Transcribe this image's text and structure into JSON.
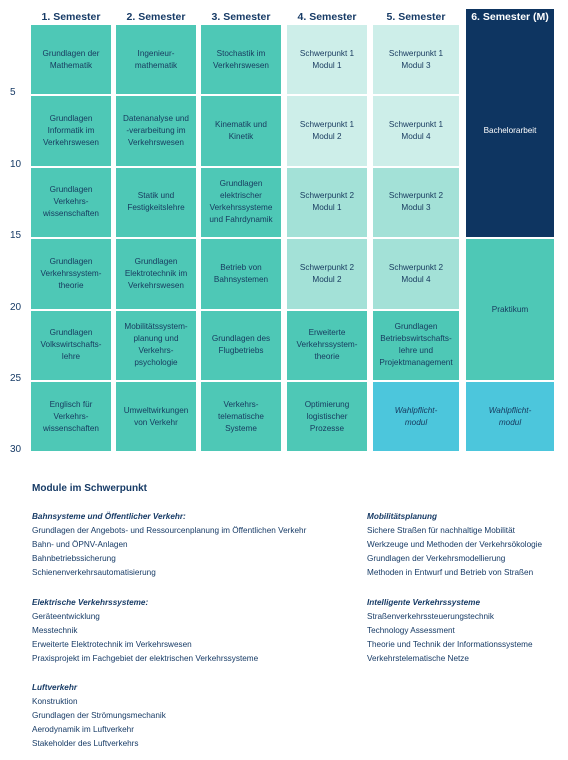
{
  "semesters": [
    "1. Semester",
    "2. Semester",
    "3. Semester",
    "4. Semester",
    "5. Semester",
    "6. Semester (M)"
  ],
  "scale_labels": [
    "5",
    "10",
    "15",
    "20",
    "25",
    "30"
  ],
  "columns": [
    [
      {
        "label": "Grundlagen der\nMathematik",
        "style": "teal",
        "span": 5
      },
      {
        "label": "Grundlagen\nInformatik im\nVerkehrswesen",
        "style": "teal",
        "span": 5
      },
      {
        "label": "Grundlagen\nVerkehrs-\nwissenschaften",
        "style": "teal",
        "span": 5
      },
      {
        "label": "Grundlagen\nVerkehrssystem-\ntheorie",
        "style": "teal",
        "span": 5
      },
      {
        "label": "Grundlagen\nVolkswirtschafts-\nlehre",
        "style": "teal",
        "span": 5
      },
      {
        "label": "Englisch für\nVerkehrs-\nwissenschaften",
        "style": "teal",
        "span": 5
      }
    ],
    [
      {
        "label": "Ingenieur-\nmathematik",
        "style": "teal",
        "span": 5
      },
      {
        "label": "Datenanalyse und\n-verarbeitung im\nVerkehrswesen",
        "style": "teal",
        "span": 5
      },
      {
        "label": "Statik und\nFestigkeitslehre",
        "style": "teal",
        "span": 5
      },
      {
        "label": "Grundlagen\nElektrotechnik im\nVerkehrswesen",
        "style": "teal",
        "span": 5
      },
      {
        "label": "Mobilitätssystem-\nplanung und\nVerkehrs-\npsychologie",
        "style": "teal",
        "span": 5
      },
      {
        "label": "Umweltwirkungen\nvon Verkehr",
        "style": "teal",
        "span": 5
      }
    ],
    [
      {
        "label": "Stochastik im\nVerkehrswesen",
        "style": "teal",
        "span": 5
      },
      {
        "label": "Kinematik und\nKinetik",
        "style": "teal",
        "span": 5
      },
      {
        "label": "Grundlagen\nelektrischer\nVerkehrssysteme\nund Fahrdynamik",
        "style": "teal",
        "span": 5
      },
      {
        "label": "Betrieb von\nBahnsystemen",
        "style": "teal",
        "span": 5
      },
      {
        "label": "Grundlagen des\nFlugbetriebs",
        "style": "teal",
        "span": 5
      },
      {
        "label": "Verkehrs-\ntelematische\nSysteme",
        "style": "teal",
        "span": 5
      }
    ],
    [
      {
        "label": "Schwerpunkt 1\nModul 1",
        "style": "light",
        "span": 5
      },
      {
        "label": "Schwerpunkt 1\nModul 2",
        "style": "light",
        "span": 5
      },
      {
        "label": "Schwerpunkt 2\nModul 1",
        "style": "mid",
        "span": 5
      },
      {
        "label": "Schwerpunkt 2\nModul 2",
        "style": "mid",
        "span": 5
      },
      {
        "label": "Erweiterte\nVerkehrssystem-\ntheorie",
        "style": "teal",
        "span": 5
      },
      {
        "label": "Optimierung\nlogistischer\nProzesse",
        "style": "teal",
        "span": 5
      }
    ],
    [
      {
        "label": "Schwerpunkt 1\nModul 3",
        "style": "light",
        "span": 5
      },
      {
        "label": "Schwerpunkt 1\nModul 4",
        "style": "light",
        "span": 5
      },
      {
        "label": "Schwerpunkt 2\nModul 3",
        "style": "mid",
        "span": 5
      },
      {
        "label": "Schwerpunkt 2\nModul 4",
        "style": "mid",
        "span": 5
      },
      {
        "label": "Grundlagen\nBetriebswirtschafts-\nlehre und\nProjektmanagement",
        "style": "teal",
        "span": 5
      },
      {
        "label": "Wahlpflicht-\nmodul",
        "style": "cyan",
        "span": 5
      }
    ],
    [
      {
        "label": "Bachelorarbeit",
        "style": "navy",
        "span": 15
      },
      {
        "label": "Praktikum",
        "style": "teal",
        "span": 10
      },
      {
        "label": "Wahlpflicht-\nmodul",
        "style": "cyan",
        "span": 5
      }
    ]
  ],
  "modules": {
    "title": "Module im Schwerpunkt",
    "groups": [
      {
        "title": "Bahnsysteme und Öffentlicher Verkehr:",
        "items": [
          "Grundlagen der Angebots- und Ressourcenplanung im Öffentlichen Verkehr",
          "Bahn- und ÖPNV-Anlagen",
          "Bahnbetriebssicherung",
          "Schienenverkehrsautomatisierung"
        ]
      },
      {
        "title": "Mobilitätsplanung",
        "items": [
          "Sichere Straßen für nachhaltige Mobilität",
          "Werkzeuge und Methoden der Verkehrsökologie",
          "Grundlagen der Verkehrsmodellierung",
          "Methoden in Entwurf und Betrieb von Straßen"
        ]
      },
      {
        "title": "Elektrische Verkehrssysteme:",
        "items": [
          "Geräteentwicklung",
          "Messtechnik",
          "Erweiterte Elektrotechnik im Verkehrswesen",
          "Praxisprojekt im Fachgebiet der elektrischen Verkehrssysteme"
        ]
      },
      {
        "title": "Intelligente Verkehrssysteme",
        "items": [
          "Straßenverkehrssteuerungstechnik",
          "Technology Assessment",
          "Theorie und Technik der Informationssysteme",
          "Verkehrstelematische Netze"
        ]
      },
      {
        "title": "Luftverkehr",
        "items": [
          "Konstruktion",
          "Grundlagen der Strömungsmechanik",
          "Aerodynamik im Luftverkehr",
          "Stakeholder des Luftverkehrs"
        ]
      }
    ]
  }
}
